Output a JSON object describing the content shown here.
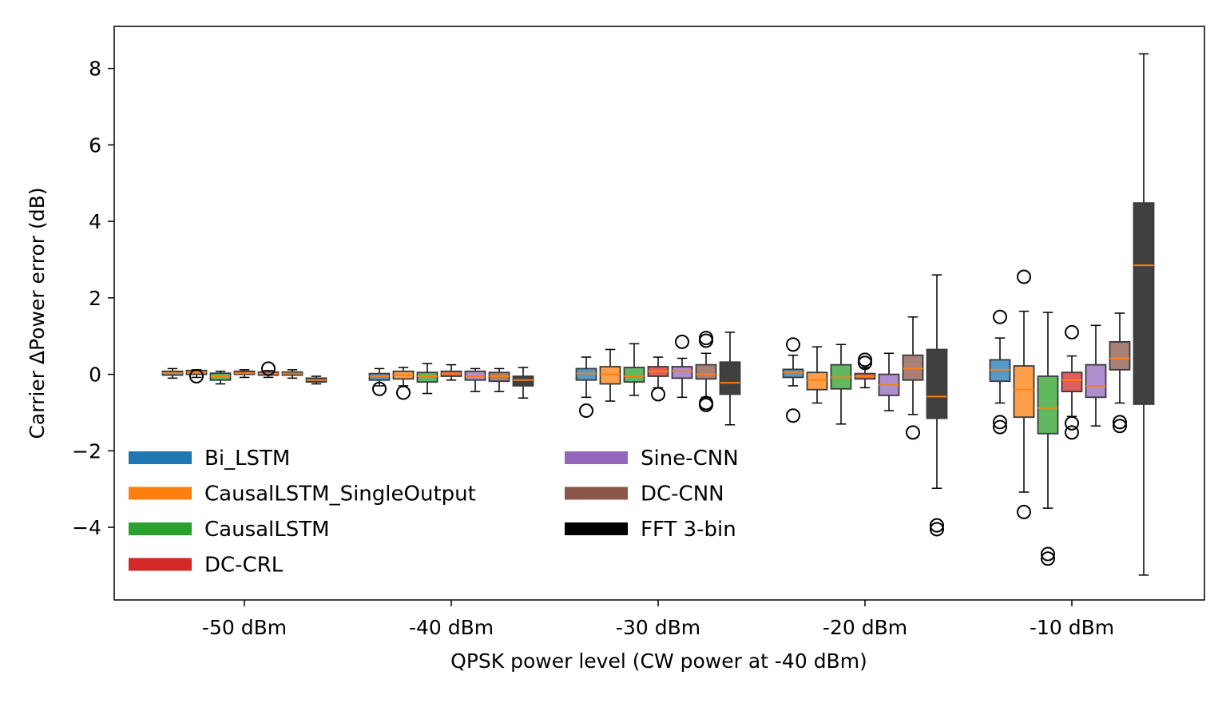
{
  "chart_data": {
    "type": "box",
    "title": "",
    "xlabel": "QPSK power level (CW power at -40 dBm)",
    "ylabel": "Carrier ΔPower error (dB)",
    "ylim": [
      -5.9,
      9.1
    ],
    "yticks": [
      -4,
      -2,
      0,
      2,
      4,
      6,
      8
    ],
    "ytick_labels": [
      "−4",
      "−2",
      "0",
      "2",
      "4",
      "6",
      "8"
    ],
    "categories": [
      "-50 dBm",
      "-40 dBm",
      "-30 dBm",
      "-20 dBm",
      "-10 dBm"
    ],
    "legend_position": "lower-left",
    "series": [
      {
        "name": "Bi_LSTM",
        "color": "#1f77b4",
        "boxes": [
          {
            "q1": -0.02,
            "median": 0.03,
            "q3": 0.08,
            "whisker_low": -0.1,
            "whisker_high": 0.15,
            "outliers": []
          },
          {
            "q1": -0.15,
            "median": -0.05,
            "q3": 0.02,
            "whisker_low": -0.3,
            "whisker_high": 0.15,
            "outliers": [
              -0.38
            ]
          },
          {
            "q1": -0.15,
            "median": 0.02,
            "q3": 0.15,
            "whisker_low": -0.6,
            "whisker_high": 0.45,
            "outliers": [
              -0.95
            ]
          },
          {
            "q1": -0.08,
            "median": 0.05,
            "q3": 0.13,
            "whisker_low": -0.3,
            "whisker_high": 0.5,
            "outliers": [
              0.78,
              -1.08
            ]
          },
          {
            "q1": -0.18,
            "median": 0.12,
            "q3": 0.38,
            "whisker_low": -0.75,
            "whisker_high": 0.95,
            "outliers": [
              1.5,
              -1.25,
              -1.38
            ]
          }
        ]
      },
      {
        "name": "CausalLSTM_SingleOutput",
        "color": "#ff7f0e",
        "boxes": [
          {
            "q1": 0.0,
            "median": 0.05,
            "q3": 0.1,
            "whisker_low": -0.08,
            "whisker_high": 0.12,
            "outliers": [
              -0.05
            ]
          },
          {
            "q1": -0.12,
            "median": -0.02,
            "q3": 0.08,
            "whisker_low": -0.3,
            "whisker_high": 0.18,
            "outliers": [
              -0.48
            ]
          },
          {
            "q1": -0.25,
            "median": 0.0,
            "q3": 0.2,
            "whisker_low": -0.7,
            "whisker_high": 0.65,
            "outliers": []
          },
          {
            "q1": -0.4,
            "median": -0.15,
            "q3": 0.05,
            "whisker_low": -0.75,
            "whisker_high": 0.72,
            "outliers": []
          },
          {
            "q1": -1.12,
            "median": -0.4,
            "q3": 0.22,
            "whisker_low": -3.08,
            "whisker_high": 1.65,
            "outliers": [
              2.55,
              -3.6
            ]
          }
        ]
      },
      {
        "name": "CausalLSTM",
        "color": "#2ca02c",
        "boxes": [
          {
            "q1": -0.15,
            "median": -0.05,
            "q3": 0.03,
            "whisker_low": -0.25,
            "whisker_high": 0.08,
            "outliers": []
          },
          {
            "q1": -0.2,
            "median": -0.05,
            "q3": 0.05,
            "whisker_low": -0.5,
            "whisker_high": 0.28,
            "outliers": []
          },
          {
            "q1": -0.2,
            "median": -0.05,
            "q3": 0.18,
            "whisker_low": -0.55,
            "whisker_high": 0.8,
            "outliers": []
          },
          {
            "q1": -0.38,
            "median": -0.08,
            "q3": 0.25,
            "whisker_low": -1.3,
            "whisker_high": 0.78,
            "outliers": []
          },
          {
            "q1": -1.55,
            "median": -0.88,
            "q3": -0.05,
            "whisker_low": -3.5,
            "whisker_high": 1.62,
            "outliers": [
              -4.7,
              -4.82
            ]
          }
        ]
      },
      {
        "name": "DC-CRL",
        "color": "#d62728",
        "boxes": [
          {
            "q1": 0.0,
            "median": 0.03,
            "q3": 0.08,
            "whisker_low": -0.08,
            "whisker_high": 0.12,
            "outliers": []
          },
          {
            "q1": -0.05,
            "median": 0.02,
            "q3": 0.08,
            "whisker_low": -0.15,
            "whisker_high": 0.25,
            "outliers": []
          },
          {
            "q1": -0.05,
            "median": 0.08,
            "q3": 0.2,
            "whisker_low": -0.35,
            "whisker_high": 0.45,
            "outliers": [
              -0.52
            ]
          },
          {
            "q1": -0.12,
            "median": -0.05,
            "q3": 0.02,
            "whisker_low": -0.35,
            "whisker_high": 0.18,
            "outliers": [
              0.3,
              0.38
            ]
          },
          {
            "q1": -0.45,
            "median": -0.15,
            "q3": 0.05,
            "whisker_low": -1.1,
            "whisker_high": 0.48,
            "outliers": [
              1.1,
              -1.28,
              -1.52
            ]
          }
        ]
      },
      {
        "name": "Sine-CNN",
        "color": "#9467bd",
        "boxes": [
          {
            "q1": -0.02,
            "median": 0.02,
            "q3": 0.06,
            "whisker_low": -0.08,
            "whisker_high": 0.1,
            "outliers": [
              0.15
            ]
          },
          {
            "q1": -0.15,
            "median": -0.05,
            "q3": 0.08,
            "whisker_low": -0.45,
            "whisker_high": 0.15,
            "outliers": []
          },
          {
            "q1": -0.1,
            "median": 0.08,
            "q3": 0.2,
            "whisker_low": -0.6,
            "whisker_high": 0.42,
            "outliers": [
              0.85
            ]
          },
          {
            "q1": -0.55,
            "median": -0.28,
            "q3": 0.0,
            "whisker_low": -0.95,
            "whisker_high": 0.55,
            "outliers": []
          },
          {
            "q1": -0.6,
            "median": -0.3,
            "q3": 0.25,
            "whisker_low": -1.35,
            "whisker_high": 1.28,
            "outliers": []
          }
        ]
      },
      {
        "name": "DC-CNN",
        "color": "#8c564b",
        "boxes": [
          {
            "q1": -0.02,
            "median": 0.02,
            "q3": 0.06,
            "whisker_low": -0.1,
            "whisker_high": 0.12,
            "outliers": []
          },
          {
            "q1": -0.18,
            "median": -0.05,
            "q3": 0.05,
            "whisker_low": -0.45,
            "whisker_high": 0.15,
            "outliers": []
          },
          {
            "q1": -0.12,
            "median": 0.0,
            "q3": 0.25,
            "whisker_low": -0.6,
            "whisker_high": 0.55,
            "outliers": [
              0.88,
              0.95,
              -0.75,
              -0.8
            ]
          },
          {
            "q1": -0.15,
            "median": 0.15,
            "q3": 0.5,
            "whisker_low": -1.05,
            "whisker_high": 1.5,
            "outliers": [
              -1.52
            ]
          },
          {
            "q1": 0.12,
            "median": 0.42,
            "q3": 0.85,
            "whisker_low": -0.75,
            "whisker_high": 1.6,
            "outliers": [
              -1.25,
              -1.35
            ]
          }
        ]
      },
      {
        "name": "FFT 3-bin",
        "color": "#000000",
        "boxes": [
          {
            "q1": -0.2,
            "median": -0.15,
            "q3": -0.1,
            "whisker_low": -0.25,
            "whisker_high": -0.05,
            "outliers": []
          },
          {
            "q1": -0.3,
            "median": -0.15,
            "q3": -0.05,
            "whisker_low": -0.62,
            "whisker_high": 0.18,
            "outliers": []
          },
          {
            "q1": -0.52,
            "median": -0.22,
            "q3": 0.32,
            "whisker_low": -1.32,
            "whisker_high": 1.1,
            "outliers": []
          },
          {
            "q1": -1.15,
            "median": -0.58,
            "q3": 0.65,
            "whisker_low": -2.98,
            "whisker_high": 2.6,
            "outliers": [
              -3.95,
              -4.05
            ]
          },
          {
            "q1": -0.78,
            "median": 2.85,
            "q3": 4.48,
            "whisker_low": -5.25,
            "whisker_high": 8.38,
            "outliers": []
          }
        ]
      }
    ]
  }
}
